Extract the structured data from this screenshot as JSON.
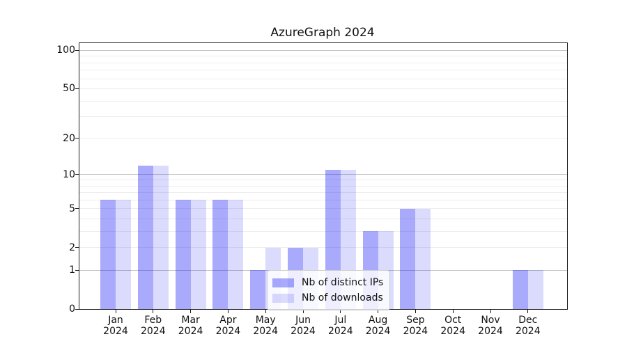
{
  "chart_data": {
    "type": "bar",
    "title": "AzureGraph 2024",
    "categories": [
      "Jan",
      "Feb",
      "Mar",
      "Apr",
      "May",
      "Jun",
      "Jul",
      "Aug",
      "Sep",
      "Oct",
      "Nov",
      "Dec"
    ],
    "x_tick_year": "2024",
    "series": [
      {
        "name": "Nb of distinct IPs",
        "color": "rgba(10,10,245,0.345)",
        "values": [
          6,
          12,
          6,
          6,
          1,
          2,
          11,
          3,
          5,
          0,
          0,
          1
        ]
      },
      {
        "name": "Nb of downloads",
        "color": "rgba(10,10,245,0.145)",
        "values": [
          6,
          12,
          6,
          6,
          2,
          2,
          11,
          3,
          5,
          0,
          0,
          1
        ]
      }
    ],
    "y_axis": {
      "scale": "log10(1+x)",
      "ticks": [
        0,
        1,
        2,
        5,
        10,
        20,
        50,
        100
      ],
      "ylim": [
        0,
        114
      ]
    },
    "grid": {
      "major_values": [
        1,
        10,
        100
      ],
      "minor_values": [
        2,
        3,
        4,
        5,
        6,
        7,
        8,
        9,
        20,
        30,
        40,
        50,
        60,
        70,
        80,
        90
      ],
      "major_color": "#c2c2c2",
      "minor_color": "#ededed"
    },
    "legend": {
      "position": "lower center"
    }
  }
}
